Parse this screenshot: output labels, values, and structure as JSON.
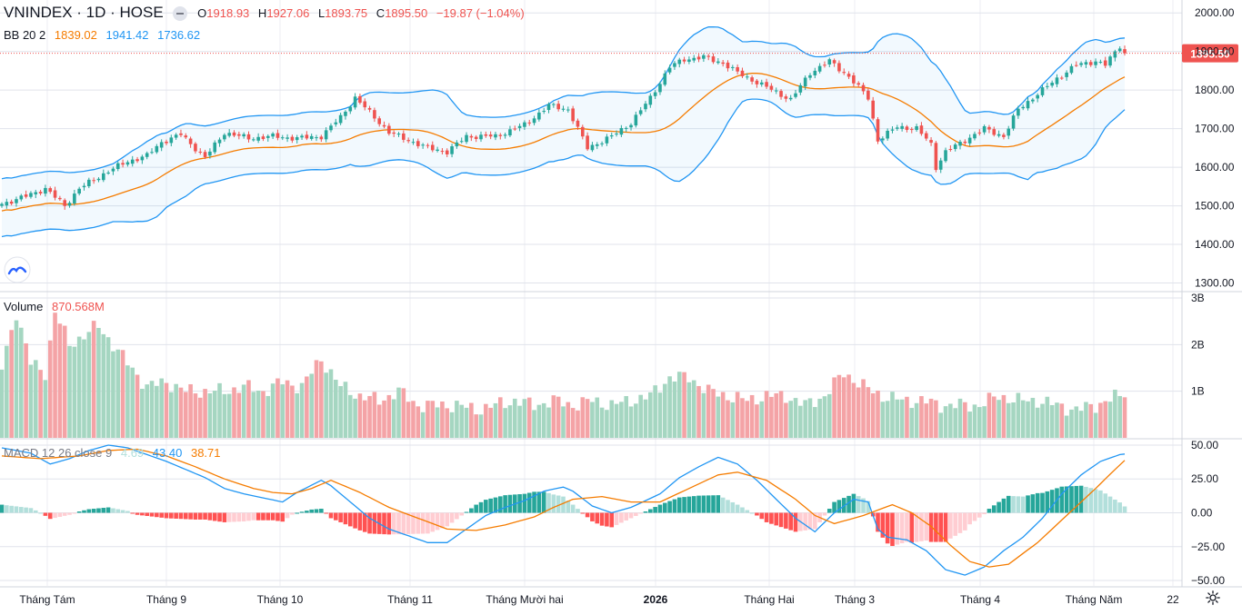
{
  "header": {
    "symbol": "VNINDEX · 1D · HOSE",
    "open_label": "O",
    "open": "1918.93",
    "high_label": "H",
    "high": "1927.06",
    "low_label": "L",
    "low": "1893.75",
    "close_label": "C",
    "close": "1895.50",
    "change": "−19.87 (−1.04%)"
  },
  "bb_legend": {
    "label": "BB 20 2",
    "basis": "1839.02",
    "upper": "1941.42",
    "lower": "1736.62"
  },
  "volume_legend": {
    "label": "Volume",
    "value": "870.568M"
  },
  "macd_legend": {
    "label": "MACD 12 26 close 9",
    "hist": "4.69",
    "macd": "43.40",
    "signal": "38.71"
  },
  "price_badge": "1895.50",
  "colors": {
    "up": "#26a69a",
    "down": "#ef5350",
    "up_vol": "#a5d6c1",
    "down_vol": "#f4a3a6",
    "bb_band": "#2196f3",
    "bb_basis": "#f57c00",
    "hist_up_strong": "#26a69a",
    "hist_up_weak": "#b2dfdb",
    "hist_down_strong": "#ff5252",
    "hist_down_weak": "#ffcdd2",
    "grid": "#e0e3eb",
    "text": "#131722"
  },
  "chart_data": {
    "type": "candlestick",
    "x_labels": [
      "Tháng Tám",
      "Tháng 9",
      "Tháng 10",
      "Tháng 11",
      "Tháng Mười hai",
      "2026",
      "Tháng Hai",
      "Tháng 3",
      "Tháng 4",
      "Tháng Năm",
      "22"
    ],
    "price_axis": {
      "ticks": [
        "2000.00",
        "1900.00",
        "1800.00",
        "1700.00",
        "1600.00",
        "1500.00",
        "1400.00",
        "1300.00"
      ],
      "range": [
        1280,
        2010
      ]
    },
    "volume_axis": {
      "ticks": [
        "3B",
        "2B",
        "1B"
      ],
      "range": [
        0,
        3
      ]
    },
    "macd_axis": {
      "ticks": [
        "50.00",
        "25.00",
        "0.00",
        "−25.00",
        "−50.00"
      ],
      "range": [
        -52,
        52
      ]
    },
    "close_anchors": [
      [
        0,
        1505
      ],
      [
        5,
        1525
      ],
      [
        9,
        1545
      ],
      [
        13,
        1500
      ],
      [
        16,
        1545
      ],
      [
        22,
        1590
      ],
      [
        26,
        1615
      ],
      [
        30,
        1630
      ],
      [
        33,
        1665
      ],
      [
        37,
        1685
      ],
      [
        42,
        1625
      ],
      [
        46,
        1690
      ],
      [
        51,
        1675
      ],
      [
        56,
        1680
      ],
      [
        61,
        1675
      ],
      [
        66,
        1680
      ],
      [
        70,
        1730
      ],
      [
        73,
        1780
      ],
      [
        77,
        1730
      ],
      [
        80,
        1690
      ],
      [
        84,
        1670
      ],
      [
        88,
        1650
      ],
      [
        92,
        1640
      ],
      [
        96,
        1680
      ],
      [
        102,
        1680
      ],
      [
        108,
        1710
      ],
      [
        113,
        1760
      ],
      [
        117,
        1750
      ],
      [
        121,
        1650
      ],
      [
        126,
        1680
      ],
      [
        130,
        1715
      ],
      [
        134,
        1780
      ],
      [
        138,
        1860
      ],
      [
        141,
        1880
      ],
      [
        145,
        1885
      ],
      [
        149,
        1870
      ],
      [
        152,
        1845
      ],
      [
        156,
        1820
      ],
      [
        160,
        1795
      ],
      [
        163,
        1775
      ],
      [
        167,
        1845
      ],
      [
        171,
        1875
      ],
      [
        175,
        1835
      ],
      [
        179,
        1780
      ],
      [
        181,
        1670
      ],
      [
        185,
        1705
      ],
      [
        189,
        1700
      ],
      [
        192,
        1660
      ],
      [
        193,
        1600
      ],
      [
        195,
        1640
      ],
      [
        199,
        1670
      ],
      [
        203,
        1700
      ],
      [
        207,
        1680
      ],
      [
        210,
        1750
      ],
      [
        214,
        1790
      ],
      [
        218,
        1830
      ],
      [
        222,
        1865
      ],
      [
        226,
        1875
      ],
      [
        228,
        1865
      ],
      [
        231,
        1915
      ],
      [
        232,
        1895.5
      ]
    ],
    "volume_anchors_B": [
      [
        0,
        1.5
      ],
      [
        3,
        2.7
      ],
      [
        6,
        1.6
      ],
      [
        9,
        1.4
      ],
      [
        11,
        2.7
      ],
      [
        14,
        2.0
      ],
      [
        17,
        2.2
      ],
      [
        20,
        2.4
      ],
      [
        23,
        2.0
      ],
      [
        26,
        1.6
      ],
      [
        30,
        1.1
      ],
      [
        34,
        1.2
      ],
      [
        38,
        1.0
      ],
      [
        42,
        1.0
      ],
      [
        46,
        1.0
      ],
      [
        50,
        1.1
      ],
      [
        54,
        1.0
      ],
      [
        58,
        1.2
      ],
      [
        62,
        1.1
      ],
      [
        66,
        1.7
      ],
      [
        70,
        1.1
      ],
      [
        74,
        0.9
      ],
      [
        78,
        0.8
      ],
      [
        82,
        1.0
      ],
      [
        86,
        0.7
      ],
      [
        90,
        0.7
      ],
      [
        94,
        0.7
      ],
      [
        98,
        0.6
      ],
      [
        102,
        0.7
      ],
      [
        106,
        0.8
      ],
      [
        110,
        0.7
      ],
      [
        114,
        0.8
      ],
      [
        118,
        0.7
      ],
      [
        122,
        0.8
      ],
      [
        126,
        0.7
      ],
      [
        130,
        0.8
      ],
      [
        134,
        0.9
      ],
      [
        138,
        1.3
      ],
      [
        142,
        1.3
      ],
      [
        146,
        1.0
      ],
      [
        150,
        0.9
      ],
      [
        154,
        0.8
      ],
      [
        158,
        0.9
      ],
      [
        162,
        0.9
      ],
      [
        166,
        0.7
      ],
      [
        170,
        0.9
      ],
      [
        174,
        1.4
      ],
      [
        178,
        1.1
      ],
      [
        182,
        0.9
      ],
      [
        186,
        0.8
      ],
      [
        190,
        0.8
      ],
      [
        194,
        0.7
      ],
      [
        198,
        0.7
      ],
      [
        202,
        0.7
      ],
      [
        206,
        0.9
      ],
      [
        210,
        0.8
      ],
      [
        214,
        0.8
      ],
      [
        218,
        0.7
      ],
      [
        222,
        0.6
      ],
      [
        226,
        0.7
      ],
      [
        230,
        0.87
      ],
      [
        232,
        0.87
      ]
    ],
    "macd_anchors": [
      [
        0,
        48
      ],
      [
        6,
        44
      ],
      [
        10,
        36
      ],
      [
        14,
        40
      ],
      [
        18,
        46
      ],
      [
        22,
        50
      ],
      [
        26,
        48
      ],
      [
        30,
        43
      ],
      [
        34,
        38
      ],
      [
        38,
        32
      ],
      [
        42,
        26
      ],
      [
        46,
        18
      ],
      [
        50,
        14
      ],
      [
        54,
        11
      ],
      [
        58,
        8
      ],
      [
        61,
        15
      ],
      [
        66,
        24
      ],
      [
        68,
        20
      ],
      [
        72,
        8
      ],
      [
        76,
        -4
      ],
      [
        80,
        -12
      ],
      [
        84,
        -17
      ],
      [
        88,
        -22
      ],
      [
        92,
        -22
      ],
      [
        96,
        -12
      ],
      [
        100,
        -2
      ],
      [
        104,
        4
      ],
      [
        108,
        9
      ],
      [
        112,
        16
      ],
      [
        116,
        19
      ],
      [
        118,
        16
      ],
      [
        122,
        5
      ],
      [
        126,
        0
      ],
      [
        130,
        4
      ],
      [
        136,
        14
      ],
      [
        140,
        26
      ],
      [
        144,
        34
      ],
      [
        148,
        41
      ],
      [
        152,
        36
      ],
      [
        156,
        24
      ],
      [
        160,
        10
      ],
      [
        164,
        -4
      ],
      [
        168,
        -14
      ],
      [
        172,
        0
      ],
      [
        176,
        10
      ],
      [
        179,
        8
      ],
      [
        181,
        -12
      ],
      [
        183,
        -18
      ],
      [
        187,
        -20
      ],
      [
        191,
        -28
      ],
      [
        195,
        -42
      ],
      [
        199,
        -46
      ],
      [
        203,
        -40
      ],
      [
        207,
        -28
      ],
      [
        211,
        -18
      ],
      [
        215,
        -4
      ],
      [
        219,
        14
      ],
      [
        223,
        28
      ],
      [
        227,
        38
      ],
      [
        231,
        43
      ],
      [
        232,
        43.4
      ]
    ],
    "signal_anchors": [
      [
        0,
        42
      ],
      [
        8,
        40
      ],
      [
        16,
        42
      ],
      [
        22,
        46
      ],
      [
        28,
        47
      ],
      [
        34,
        42
      ],
      [
        40,
        34
      ],
      [
        46,
        25
      ],
      [
        52,
        18
      ],
      [
        56,
        15
      ],
      [
        60,
        14
      ],
      [
        64,
        18
      ],
      [
        68,
        24
      ],
      [
        74,
        15
      ],
      [
        80,
        4
      ],
      [
        86,
        -4
      ],
      [
        92,
        -12
      ],
      [
        98,
        -13
      ],
      [
        104,
        -9
      ],
      [
        110,
        -3
      ],
      [
        114,
        4
      ],
      [
        118,
        10
      ],
      [
        124,
        12
      ],
      [
        130,
        8
      ],
      [
        136,
        8
      ],
      [
        142,
        18
      ],
      [
        148,
        28
      ],
      [
        152,
        30
      ],
      [
        158,
        24
      ],
      [
        164,
        10
      ],
      [
        168,
        -2
      ],
      [
        172,
        -8
      ],
      [
        178,
        -2
      ],
      [
        184,
        6
      ],
      [
        188,
        0
      ],
      [
        192,
        -10
      ],
      [
        196,
        -24
      ],
      [
        200,
        -36
      ],
      [
        204,
        -40
      ],
      [
        208,
        -38
      ],
      [
        214,
        -22
      ],
      [
        220,
        -2
      ],
      [
        226,
        18
      ],
      [
        230,
        32
      ],
      [
        232,
        38.7
      ]
    ]
  }
}
